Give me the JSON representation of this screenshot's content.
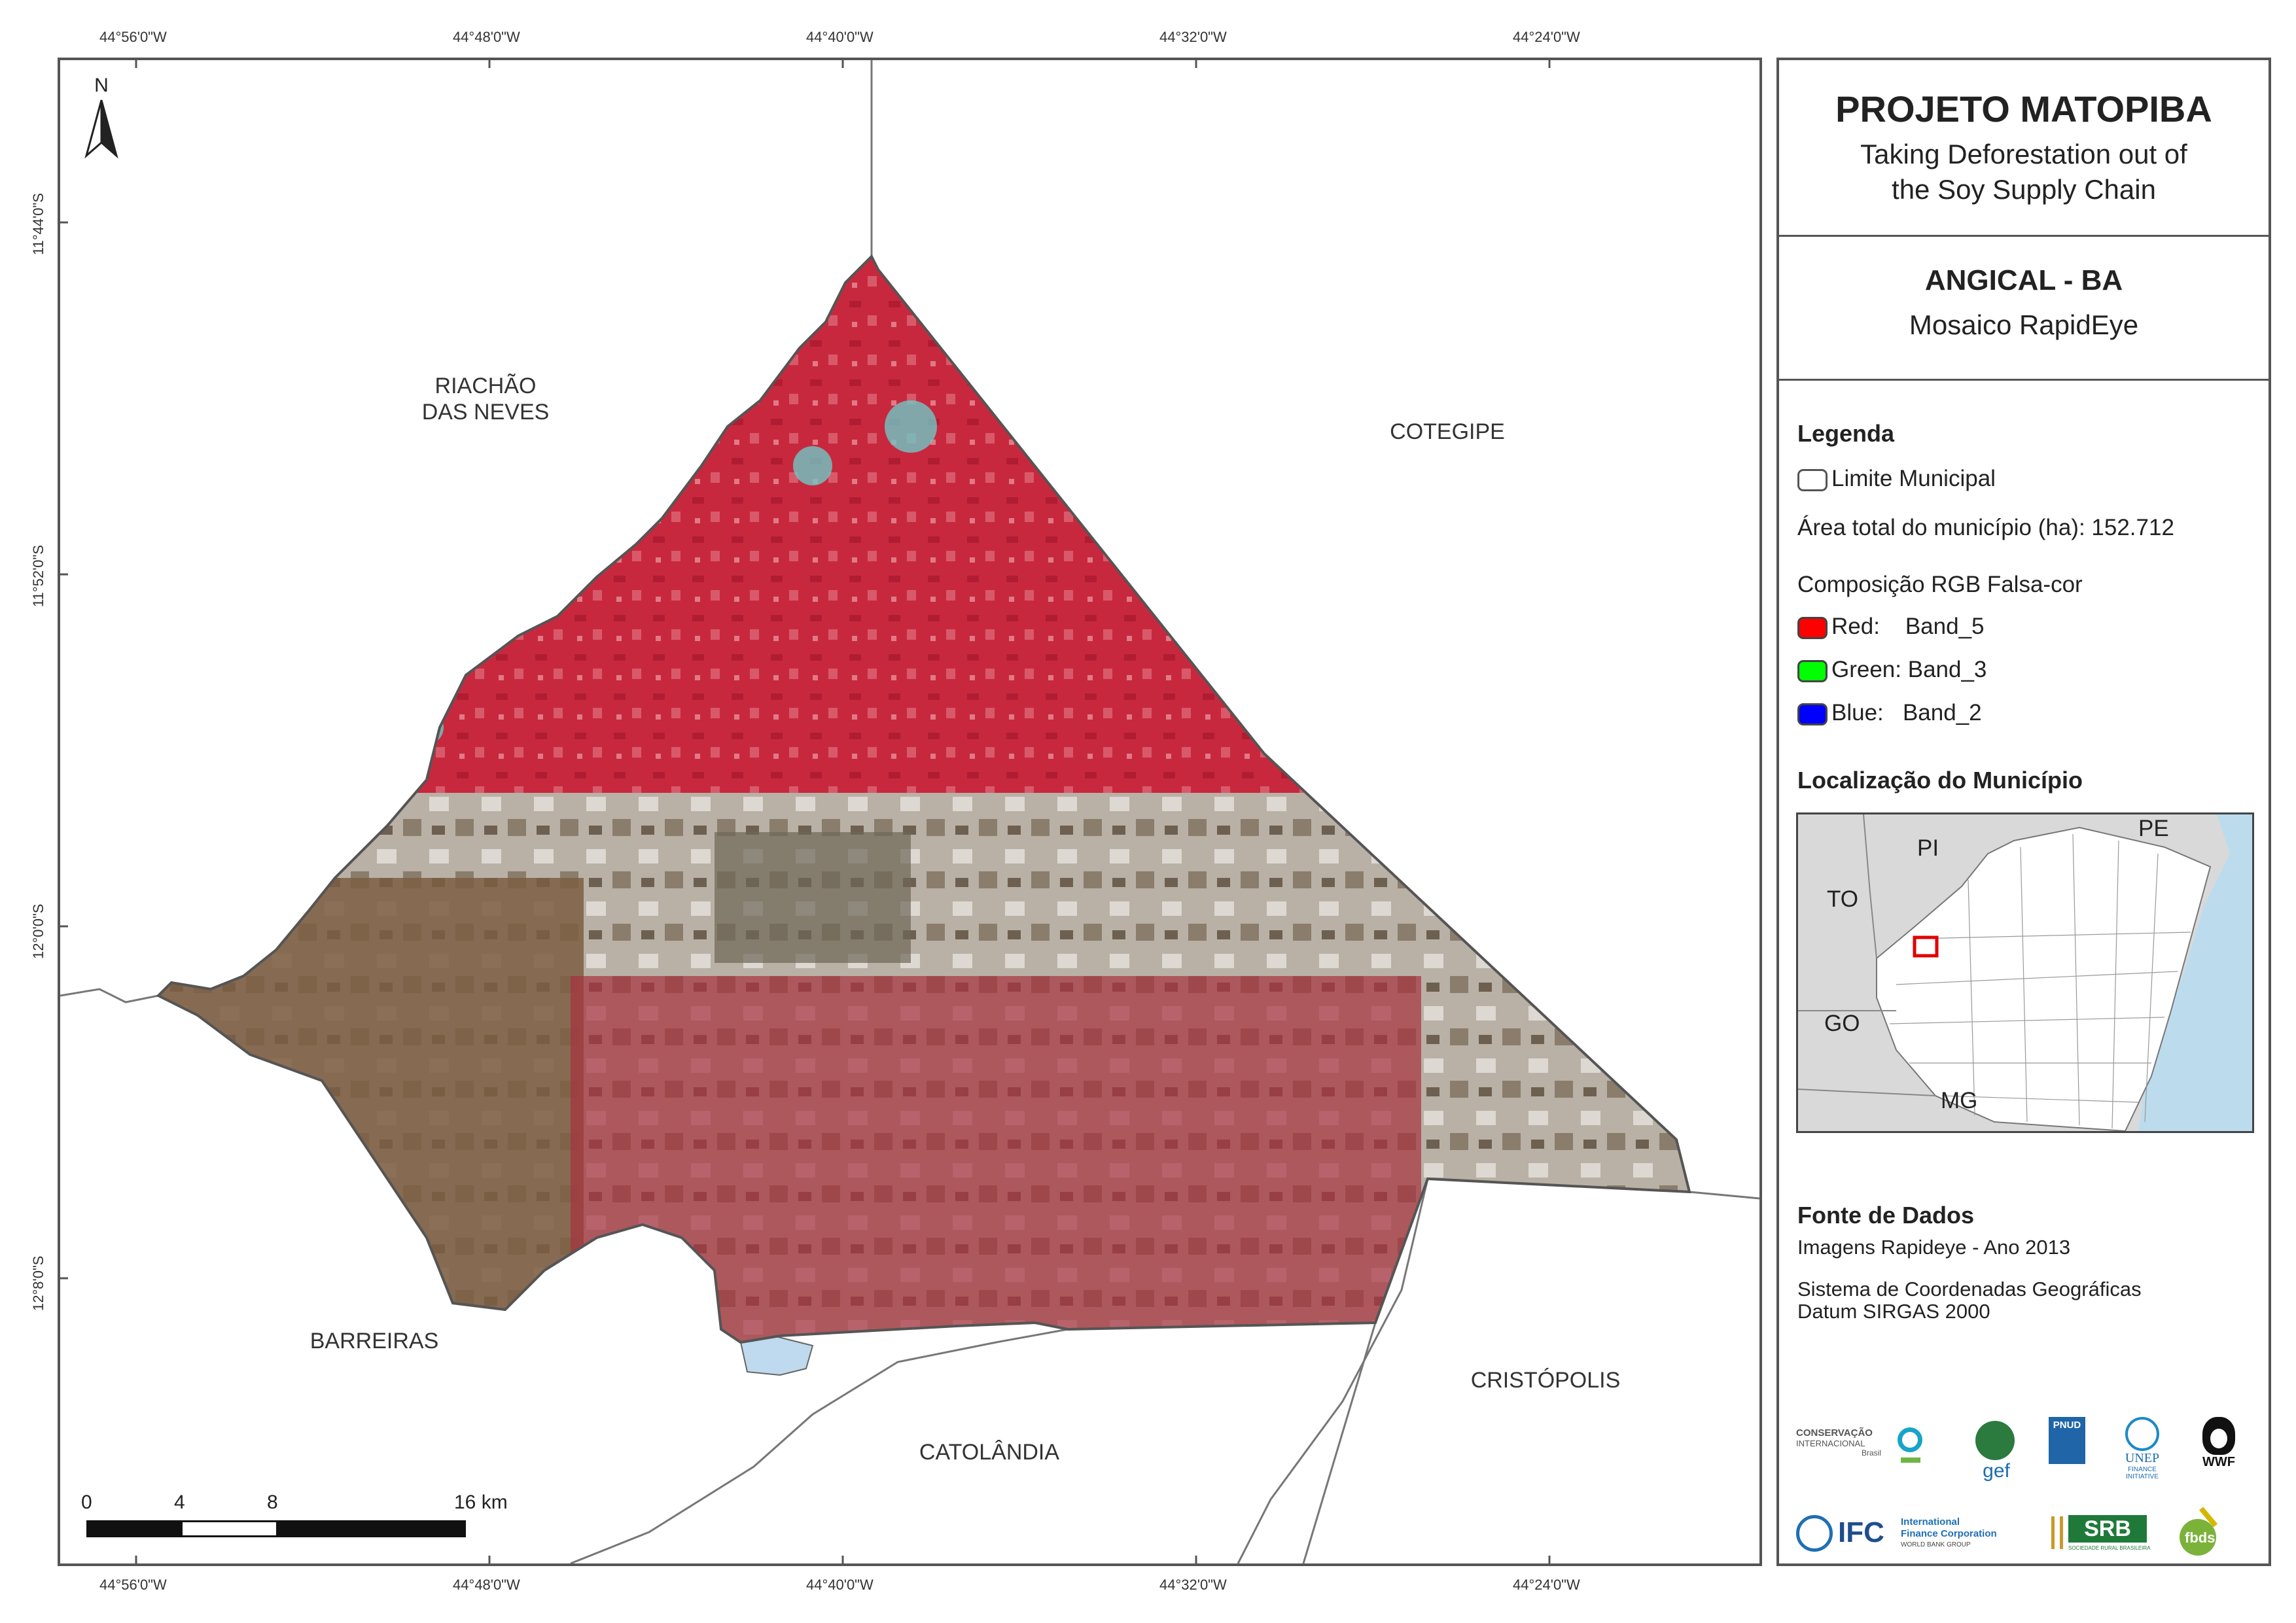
{
  "coordinates": {
    "top": [
      "44°56'0\"W",
      "44°48'0\"W",
      "44°40'0\"W",
      "44°32'0\"W",
      "44°24'0\"W"
    ],
    "bottom": [
      "44°56'0\"W",
      "44°48'0\"W",
      "44°40'0\"W",
      "44°32'0\"W",
      "44°24'0\"W"
    ],
    "left": [
      "11°44'0\"S",
      "11°52'0\"S",
      "12°0'0\"S",
      "12°8'0\"S"
    ]
  },
  "north_arrow": {
    "label": "N"
  },
  "neighbors": {
    "riachao": "RIACHÃO\nDAS NEVES",
    "cotegipe": "COTEGIPE",
    "barreiras": "BARREIRAS",
    "catolandia": "CATOLÂNDIA",
    "cristopolis": "CRISTÓPOLIS"
  },
  "scale_bar": {
    "ticks": [
      "0",
      "4",
      "8",
      "16 km"
    ]
  },
  "panel": {
    "title": "PROJETO MATOPIBA",
    "subtitle_line1": "Taking Deforestation out of",
    "subtitle_line2": "the Soy Supply Chain",
    "municipality": "ANGICAL - BA",
    "mosaic": "Mosaico RapidEye",
    "legend": {
      "heading": "Legenda",
      "boundary": "Limite Municipal",
      "area": "Área total do município (ha): 152.712",
      "composition": "Composição RGB Falsa-cor",
      "bands": [
        {
          "label": "Red:    Band_5",
          "color": "#ff0000"
        },
        {
          "label": "Green: Band_3",
          "color": "#00ff00"
        },
        {
          "label": "Blue:   Band_2",
          "color": "#0000ff"
        }
      ]
    },
    "location": {
      "heading": "Localização do Município",
      "states": [
        "PI",
        "PE",
        "TO",
        "GO",
        "MG"
      ]
    },
    "sources": {
      "heading": "Fonte de Dados",
      "line1": "Imagens Rapideye - Ano 2013",
      "line2": "Sistema de Coordenadas Geográficas",
      "line3": "Datum SIRGAS 2000"
    },
    "logos": {
      "ci_name": "CONSERVAÇÃO",
      "ci_sub": "INTERNACIONAL",
      "ci_country": "Brasil",
      "gef": "gef",
      "pnud": "PNUD",
      "unep": "UNEP",
      "unep_sub": "FINANCE INITIATIVE",
      "wwf": "WWF",
      "ifc": "IFC",
      "ifc_name1": "International",
      "ifc_name2": "Finance Corporation",
      "ifc_group": "WORLD BANK GROUP",
      "srb": "SRB",
      "srb_sub": "SOCIEDADE RURAL BRASILEIRA",
      "fbds": "fbds"
    }
  }
}
